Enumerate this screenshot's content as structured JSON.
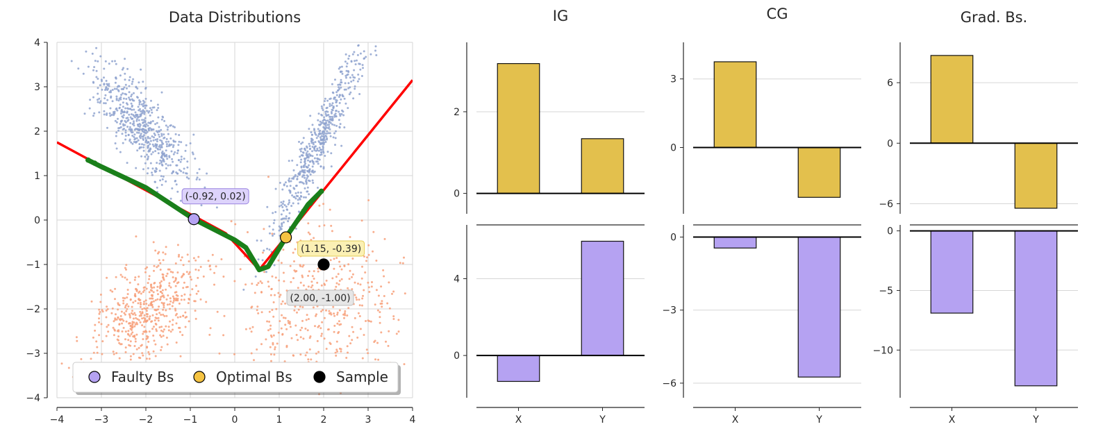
{
  "figure": {
    "background": "#ffffff"
  },
  "chart_data": [
    {
      "type": "scatter",
      "title": "Data Distributions",
      "xlim": [
        -4,
        4
      ],
      "ylim": [
        -4,
        4
      ],
      "xticks": [
        -4,
        -3,
        -2,
        -1,
        0,
        1,
        2,
        3,
        4
      ],
      "yticks": [
        -4,
        -3,
        -2,
        -1,
        0,
        1,
        2,
        3,
        4
      ],
      "grid": true,
      "clusters": [
        {
          "name": "upper-left band",
          "color": "#8fa3cf",
          "center": [
            -2.1,
            2.1
          ],
          "direction": [
            0.6,
            -0.8
          ],
          "length_sd": 0.85,
          "width_sd": 0.28,
          "count": 620
        },
        {
          "name": "upper-right band",
          "color": "#8fa3cf",
          "center": [
            1.9,
            1.8
          ],
          "direction": [
            0.42,
            0.91
          ],
          "length_sd": 1.25,
          "width_sd": 0.15,
          "count": 560
        },
        {
          "name": "lower-left blob",
          "color": "#f7a07a",
          "center": [
            -1.9,
            -2.0
          ],
          "direction": [
            0.72,
            0.7
          ],
          "length_sd": 0.75,
          "width_sd": 0.42,
          "count": 520
        },
        {
          "name": "lower-right blob",
          "color": "#f7a07a",
          "center": [
            1.9,
            -2.0
          ],
          "direction": [
            0.0,
            1.0
          ],
          "length_sd": 0.9,
          "width_sd": 0.95,
          "count": 480
        }
      ],
      "series": [
        {
          "name": "decision boundary",
          "color": "#ff0000",
          "points": [
            [
              -4,
              1.75
            ],
            [
              -0.2,
              -0.3
            ],
            [
              0.55,
              -1.12
            ],
            [
              4,
              3.15
            ]
          ]
        },
        {
          "name": "baseline path",
          "color": "#1a7f1a",
          "points": [
            [
              -3.3,
              1.35
            ],
            [
              -3.0,
              1.2
            ],
            [
              -2.0,
              0.73
            ],
            [
              -0.92,
              0.02
            ],
            [
              0.0,
              -0.45
            ],
            [
              0.25,
              -0.62
            ],
            [
              0.55,
              -1.12
            ],
            [
              0.75,
              -1.05
            ],
            [
              1.15,
              -0.39
            ],
            [
              1.45,
              0.05
            ],
            [
              1.65,
              0.35
            ],
            [
              1.95,
              0.65
            ]
          ]
        }
      ],
      "markers": [
        {
          "name": "Faulty Bs",
          "x": -0.92,
          "y": 0.02,
          "color": "#b5a2f2",
          "label": "(-0.92, 0.02)",
          "label_bg": "#ddd3fb",
          "label_border": "#9a83e0"
        },
        {
          "name": "Optimal Bs",
          "x": 1.15,
          "y": -0.39,
          "color": "#f5c342",
          "label": "(1.15, -0.39)",
          "label_bg": "#fbf0b4",
          "label_border": "#e6cd55"
        },
        {
          "name": "Sample",
          "x": 2.0,
          "y": -1.0,
          "color": "#000000",
          "label": "(2.00, -1.00)",
          "label_bg": "#e6e6e6",
          "label_border": "#bdbdbd"
        }
      ],
      "legend": {
        "placement": "lower-center",
        "entries": [
          "Faulty Bs",
          "Optimal Bs",
          "Sample"
        ]
      }
    },
    {
      "type": "bar",
      "title": "IG",
      "categories": [
        "X",
        "Y"
      ],
      "panels": [
        {
          "name": "optimal",
          "color": "#e3c04d",
          "values": [
            3.18,
            1.34
          ],
          "ylim": [
            -0.5,
            3.7
          ],
          "yticks": [
            0,
            2
          ]
        },
        {
          "name": "faulty",
          "color": "#b5a2f2",
          "values": [
            -1.35,
            5.95
          ],
          "ylim": [
            -2.2,
            6.8
          ],
          "yticks": [
            0,
            4
          ]
        }
      ]
    },
    {
      "type": "bar",
      "title": "CG",
      "categories": [
        "X",
        "Y"
      ],
      "panels": [
        {
          "name": "optimal",
          "color": "#e3c04d",
          "values": [
            3.75,
            -2.18
          ],
          "ylim": [
            -2.9,
            4.6
          ],
          "yticks": [
            0,
            3
          ]
        },
        {
          "name": "faulty",
          "color": "#b5a2f2",
          "values": [
            -0.45,
            -5.75
          ],
          "ylim": [
            -6.6,
            0.5
          ],
          "yticks": [
            0,
            -3,
            -6
          ]
        }
      ]
    },
    {
      "type": "bar",
      "title": "Grad. Bs.",
      "categories": [
        "X",
        "Y"
      ],
      "panels": [
        {
          "name": "optimal",
          "color": "#e3c04d",
          "values": [
            8.7,
            -6.45
          ],
          "ylim": [
            -7.0,
            10.0
          ],
          "yticks": [
            6,
            0,
            -6
          ]
        },
        {
          "name": "faulty",
          "color": "#b5a2f2",
          "values": [
            -6.9,
            -13.0
          ],
          "ylim": [
            -14.0,
            0.5
          ],
          "yticks": [
            0,
            -5,
            -10
          ]
        }
      ]
    }
  ]
}
